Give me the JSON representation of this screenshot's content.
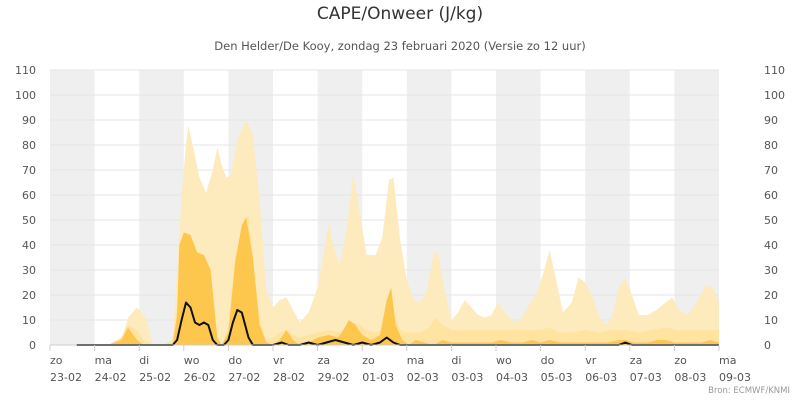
{
  "title": "CAPE/Onweer (J/kg)",
  "subtitle": "Den Helder/De Kooy, zondag 23 februari 2020 (Versie zo 12 uur)",
  "credits": "Bron: ECMWF/KNMI",
  "colors": {
    "band_outer": "#fdebbe",
    "band_mid": "#ffe3a0",
    "band_inner": "#fdc74e",
    "line": "#111111",
    "shade": "#efefef",
    "grid": "#e6e6e6",
    "axis_text": "#555555"
  },
  "chart_data": {
    "type": "area",
    "ylim": [
      0,
      110
    ],
    "yticks": [
      0,
      10,
      20,
      30,
      40,
      50,
      60,
      70,
      80,
      90,
      100,
      110
    ],
    "x_unit": "days from zo 23-02 00:00",
    "x_range": [
      0,
      15
    ],
    "day_labels": [
      [
        "zo",
        "23-02"
      ],
      [
        "ma",
        "24-02"
      ],
      [
        "di",
        "25-02"
      ],
      [
        "wo",
        "26-02"
      ],
      [
        "do",
        "27-02"
      ],
      [
        "vr",
        "28-02"
      ],
      [
        "za",
        "29-02"
      ],
      [
        "zo",
        "01-03"
      ],
      [
        "ma",
        "02-03"
      ],
      [
        "di",
        "03-03"
      ],
      [
        "wo",
        "04-03"
      ],
      [
        "do",
        "05-03"
      ],
      [
        "vr",
        "06-03"
      ],
      [
        "za",
        "07-03"
      ],
      [
        "zo",
        "08-03"
      ],
      [
        "ma",
        "09-03"
      ]
    ],
    "series": [
      {
        "role": "outer-band",
        "points": [
          [
            0.7,
            0
          ],
          [
            1.3,
            0
          ],
          [
            1.6,
            2
          ],
          [
            1.75,
            11
          ],
          [
            1.95,
            15
          ],
          [
            2.15,
            11
          ],
          [
            2.3,
            0
          ],
          [
            2.55,
            0
          ],
          [
            2.75,
            2
          ],
          [
            2.85,
            30
          ],
          [
            2.95,
            60
          ],
          [
            3.05,
            80
          ],
          [
            3.1,
            88
          ],
          [
            3.2,
            80
          ],
          [
            3.35,
            67
          ],
          [
            3.5,
            61
          ],
          [
            3.65,
            70
          ],
          [
            3.75,
            79
          ],
          [
            3.85,
            72
          ],
          [
            3.95,
            67
          ],
          [
            4.05,
            68
          ],
          [
            4.2,
            82
          ],
          [
            4.4,
            90
          ],
          [
            4.55,
            84
          ],
          [
            4.7,
            58
          ],
          [
            4.85,
            22
          ],
          [
            5.0,
            15
          ],
          [
            5.15,
            18
          ],
          [
            5.3,
            19
          ],
          [
            5.45,
            14
          ],
          [
            5.6,
            9
          ],
          [
            5.8,
            13
          ],
          [
            6.0,
            23
          ],
          [
            6.1,
            33
          ],
          [
            6.25,
            49
          ],
          [
            6.35,
            40
          ],
          [
            6.5,
            32
          ],
          [
            6.65,
            46
          ],
          [
            6.8,
            69
          ],
          [
            6.95,
            52
          ],
          [
            7.1,
            36
          ],
          [
            7.3,
            36
          ],
          [
            7.45,
            43
          ],
          [
            7.6,
            66
          ],
          [
            7.7,
            67
          ],
          [
            7.85,
            42
          ],
          [
            8.0,
            26
          ],
          [
            8.15,
            18
          ],
          [
            8.3,
            17
          ],
          [
            8.45,
            22
          ],
          [
            8.6,
            37
          ],
          [
            8.7,
            37
          ],
          [
            8.85,
            22
          ],
          [
            9.0,
            10
          ],
          [
            9.15,
            13
          ],
          [
            9.3,
            18
          ],
          [
            9.45,
            15
          ],
          [
            9.6,
            12
          ],
          [
            9.75,
            11
          ],
          [
            9.9,
            12
          ],
          [
            10.05,
            17
          ],
          [
            10.2,
            13
          ],
          [
            10.35,
            10
          ],
          [
            10.5,
            9
          ],
          [
            10.65,
            13
          ],
          [
            10.8,
            18
          ],
          [
            10.9,
            20
          ],
          [
            11.05,
            28
          ],
          [
            11.2,
            38
          ],
          [
            11.35,
            26
          ],
          [
            11.5,
            13
          ],
          [
            11.7,
            17
          ],
          [
            11.85,
            27
          ],
          [
            12.0,
            25
          ],
          [
            12.15,
            20
          ],
          [
            12.3,
            12
          ],
          [
            12.45,
            8
          ],
          [
            12.6,
            11
          ],
          [
            12.75,
            23
          ],
          [
            12.9,
            27
          ],
          [
            13.05,
            20
          ],
          [
            13.2,
            12
          ],
          [
            13.4,
            12
          ],
          [
            13.6,
            14
          ],
          [
            13.8,
            17
          ],
          [
            13.95,
            19
          ],
          [
            14.1,
            14
          ],
          [
            14.3,
            12
          ],
          [
            14.5,
            17
          ],
          [
            14.7,
            24
          ],
          [
            14.85,
            23
          ],
          [
            15.0,
            17
          ]
        ]
      },
      {
        "role": "middle-band",
        "points": [
          [
            0.7,
            0
          ],
          [
            1.3,
            0
          ],
          [
            1.6,
            3
          ],
          [
            1.75,
            8
          ],
          [
            1.95,
            6
          ],
          [
            2.1,
            2
          ],
          [
            2.3,
            0
          ],
          [
            2.55,
            0
          ],
          [
            2.75,
            2
          ],
          [
            2.85,
            15
          ],
          [
            2.95,
            40
          ],
          [
            3.0,
            45
          ],
          [
            3.15,
            44
          ],
          [
            3.3,
            37
          ],
          [
            3.45,
            36
          ],
          [
            3.6,
            30
          ],
          [
            3.75,
            2
          ],
          [
            3.85,
            0
          ],
          [
            4.0,
            8
          ],
          [
            4.15,
            35
          ],
          [
            4.35,
            50
          ],
          [
            4.45,
            52
          ],
          [
            4.55,
            35
          ],
          [
            4.7,
            10
          ],
          [
            4.85,
            2
          ],
          [
            5.0,
            3
          ],
          [
            5.15,
            5
          ],
          [
            5.3,
            6
          ],
          [
            5.45,
            4
          ],
          [
            5.6,
            3
          ],
          [
            5.8,
            4
          ],
          [
            6.0,
            5
          ],
          [
            6.25,
            6
          ],
          [
            6.5,
            5
          ],
          [
            6.65,
            7
          ],
          [
            6.8,
            9
          ],
          [
            6.95,
            8
          ],
          [
            7.1,
            6
          ],
          [
            7.3,
            5
          ],
          [
            7.45,
            6
          ],
          [
            7.55,
            16
          ],
          [
            7.65,
            20
          ],
          [
            7.75,
            10
          ],
          [
            7.85,
            6
          ],
          [
            8.0,
            5
          ],
          [
            8.3,
            5
          ],
          [
            8.5,
            7
          ],
          [
            8.65,
            11
          ],
          [
            8.8,
            8
          ],
          [
            9.0,
            6
          ],
          [
            9.3,
            6
          ],
          [
            9.6,
            6
          ],
          [
            10.0,
            6
          ],
          [
            10.3,
            6
          ],
          [
            10.6,
            6
          ],
          [
            11.0,
            6
          ],
          [
            11.2,
            7
          ],
          [
            11.4,
            5
          ],
          [
            11.7,
            5
          ],
          [
            12.0,
            6
          ],
          [
            12.3,
            5
          ],
          [
            12.6,
            6
          ],
          [
            12.9,
            6
          ],
          [
            13.2,
            5
          ],
          [
            13.5,
            6
          ],
          [
            13.8,
            7
          ],
          [
            14.1,
            6
          ],
          [
            14.4,
            6
          ],
          [
            14.7,
            6
          ],
          [
            15.0,
            6
          ]
        ]
      },
      {
        "role": "inner-band",
        "points": [
          [
            0.7,
            0
          ],
          [
            1.3,
            0
          ],
          [
            1.6,
            2
          ],
          [
            1.75,
            7
          ],
          [
            1.95,
            2
          ],
          [
            2.1,
            0
          ],
          [
            2.55,
            0
          ],
          [
            2.75,
            0
          ],
          [
            2.85,
            12
          ],
          [
            2.9,
            40
          ],
          [
            3.0,
            45
          ],
          [
            3.15,
            44
          ],
          [
            3.3,
            37
          ],
          [
            3.45,
            36
          ],
          [
            3.6,
            30
          ],
          [
            3.75,
            3
          ],
          [
            3.85,
            0
          ],
          [
            4.0,
            5
          ],
          [
            4.15,
            33
          ],
          [
            4.3,
            48
          ],
          [
            4.4,
            51
          ],
          [
            4.55,
            35
          ],
          [
            4.7,
            8
          ],
          [
            4.85,
            1
          ],
          [
            5.0,
            0
          ],
          [
            5.15,
            2
          ],
          [
            5.3,
            6
          ],
          [
            5.45,
            2
          ],
          [
            5.6,
            0
          ],
          [
            5.8,
            1
          ],
          [
            6.0,
            3
          ],
          [
            6.25,
            4
          ],
          [
            6.45,
            3
          ],
          [
            6.55,
            5
          ],
          [
            6.7,
            10
          ],
          [
            6.85,
            8
          ],
          [
            7.0,
            4
          ],
          [
            7.2,
            2
          ],
          [
            7.4,
            4
          ],
          [
            7.55,
            18
          ],
          [
            7.65,
            23
          ],
          [
            7.75,
            8
          ],
          [
            7.9,
            2
          ],
          [
            8.05,
            0
          ],
          [
            8.2,
            2
          ],
          [
            8.4,
            1
          ],
          [
            8.6,
            0
          ],
          [
            8.8,
            2
          ],
          [
            9.0,
            1
          ],
          [
            9.3,
            1
          ],
          [
            9.6,
            1
          ],
          [
            9.9,
            1
          ],
          [
            10.1,
            2
          ],
          [
            10.35,
            1
          ],
          [
            10.6,
            1
          ],
          [
            10.8,
            2
          ],
          [
            11.0,
            1
          ],
          [
            11.2,
            2
          ],
          [
            11.45,
            1
          ],
          [
            11.7,
            1
          ],
          [
            12.0,
            1
          ],
          [
            12.3,
            1
          ],
          [
            12.5,
            1
          ],
          [
            12.75,
            2
          ],
          [
            12.9,
            2
          ],
          [
            13.1,
            1
          ],
          [
            13.4,
            1
          ],
          [
            13.6,
            2
          ],
          [
            13.8,
            2
          ],
          [
            14.0,
            1
          ],
          [
            14.3,
            1
          ],
          [
            14.6,
            1
          ],
          [
            14.8,
            2
          ],
          [
            15.0,
            1
          ]
        ]
      },
      {
        "role": "line",
        "points": [
          [
            0.6,
            0
          ],
          [
            2.5,
            0
          ],
          [
            2.75,
            0
          ],
          [
            2.85,
            2
          ],
          [
            2.95,
            10
          ],
          [
            3.05,
            17
          ],
          [
            3.15,
            15
          ],
          [
            3.25,
            9
          ],
          [
            3.35,
            8
          ],
          [
            3.45,
            9
          ],
          [
            3.55,
            8
          ],
          [
            3.65,
            2
          ],
          [
            3.75,
            0
          ],
          [
            3.9,
            0
          ],
          [
            4.0,
            2
          ],
          [
            4.1,
            9
          ],
          [
            4.2,
            14
          ],
          [
            4.3,
            13
          ],
          [
            4.45,
            3
          ],
          [
            4.55,
            0
          ],
          [
            5.0,
            0
          ],
          [
            5.2,
            1
          ],
          [
            5.35,
            0
          ],
          [
            5.6,
            0
          ],
          [
            5.8,
            1
          ],
          [
            6.0,
            0
          ],
          [
            6.2,
            1
          ],
          [
            6.4,
            2
          ],
          [
            6.6,
            1
          ],
          [
            6.8,
            0
          ],
          [
            7.0,
            1
          ],
          [
            7.2,
            0
          ],
          [
            7.4,
            1
          ],
          [
            7.55,
            3
          ],
          [
            7.7,
            1
          ],
          [
            7.85,
            0
          ],
          [
            8.4,
            0
          ],
          [
            8.6,
            0
          ],
          [
            9.0,
            0
          ],
          [
            12.5,
            0
          ],
          [
            12.75,
            0
          ],
          [
            12.9,
            1
          ],
          [
            13.05,
            0
          ],
          [
            15.0,
            0
          ]
        ]
      }
    ]
  }
}
